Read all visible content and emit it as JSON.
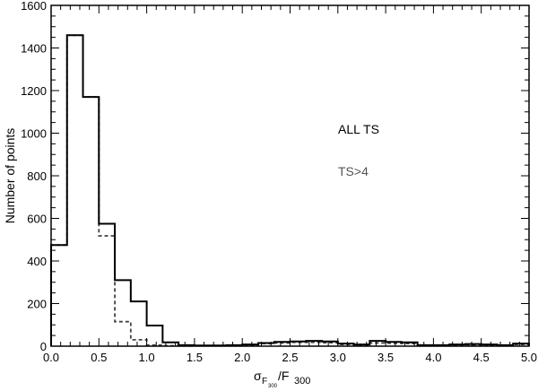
{
  "chart_data": {
    "type": "histogram",
    "title": "",
    "xlabel": "σ_F300 / F300",
    "xlabel_parts": {
      "sigma": "σ",
      "sub1": "F",
      "subsub1": "300",
      "rest": "/F",
      "sub2": "300"
    },
    "ylabel": "Number of points",
    "xlim": [
      0.0,
      5.0
    ],
    "ylim": [
      0,
      1600
    ],
    "xticks": [
      "0.0",
      "0.5",
      "1.0",
      "1.5",
      "2.0",
      "2.5",
      "3.0",
      "3.5",
      "4.0",
      "4.5",
      "5.0"
    ],
    "yticks": [
      "0",
      "200",
      "400",
      "600",
      "800",
      "1000",
      "1200",
      "1400",
      "1600"
    ],
    "bin_width": 0.1667,
    "bin_edges_start": 0.0,
    "grid": false,
    "series": [
      {
        "name": "ALL TS",
        "style": "solid",
        "color": "#000000",
        "values": [
          475,
          1460,
          1170,
          575,
          310,
          210,
          97,
          18,
          5,
          3,
          3,
          5,
          8,
          15,
          20,
          22,
          25,
          22,
          12,
          8,
          25,
          20,
          18,
          5,
          5,
          8,
          10,
          8,
          5,
          12
        ]
      },
      {
        "name": "TS>4",
        "style": "dashed",
        "color": "#444444",
        "values": [
          475,
          1460,
          1170,
          518,
          115,
          30,
          5,
          2,
          1,
          2,
          2,
          4,
          6,
          12,
          15,
          18,
          18,
          16,
          8,
          5,
          15,
          14,
          12,
          3,
          3,
          5,
          6,
          5,
          3,
          8
        ]
      }
    ],
    "legend": [
      {
        "label": "ALL TS",
        "color": "#000000"
      },
      {
        "label": "TS>4",
        "color": "#555555"
      }
    ],
    "legend_position": "center-right (text annotations)"
  }
}
